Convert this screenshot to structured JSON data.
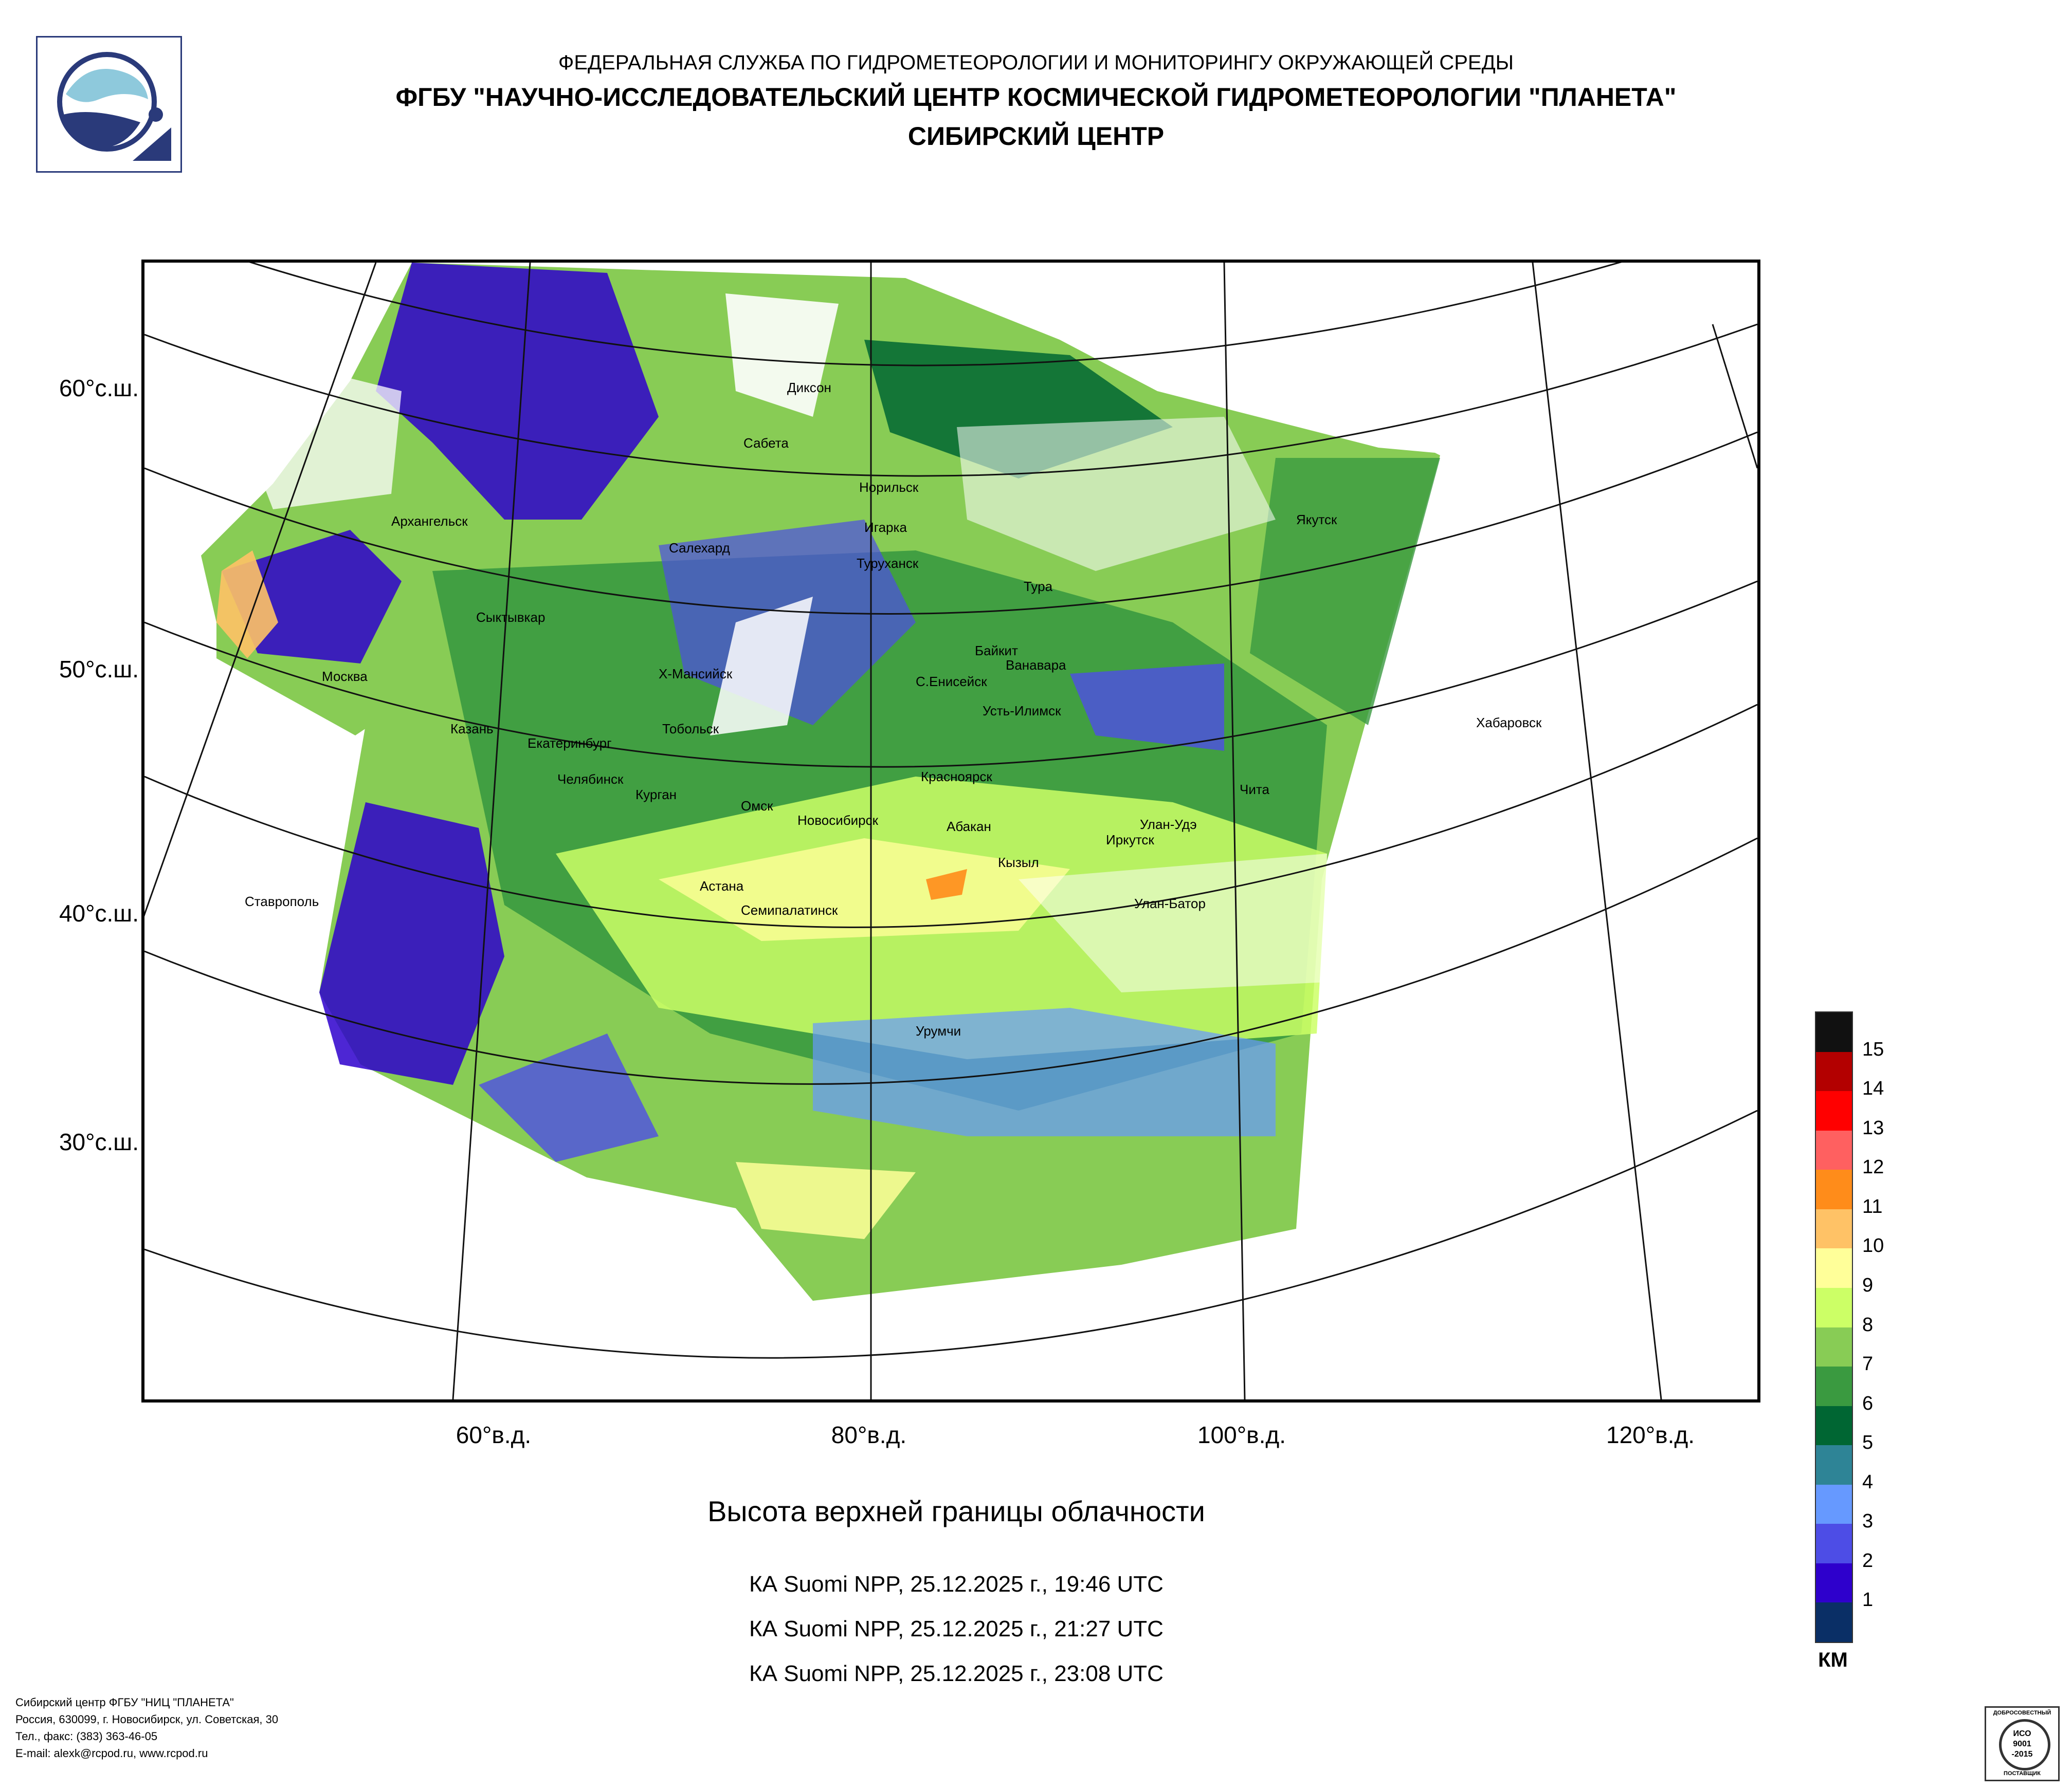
{
  "header": {
    "line1": "ФЕДЕРАЛЬНАЯ СЛУЖБА ПО ГИДРОМЕТЕОРОЛОГИИ И МОНИТОРИНГУ ОКРУЖАЮЩЕЙ СРЕДЫ",
    "line2": "ФГБУ \"НАУЧНО-ИССЛЕДОВАТЕЛЬСКИЙ ЦЕНТР КОСМИЧЕСКОЙ ГИДРОМЕТЕОРОЛОГИИ \"ПЛАНЕТА\"",
    "line3": "СИБИРСКИЙ ЦЕНТР"
  },
  "map": {
    "lat_labels": [
      "60°с.ш.",
      "50°с.ш.",
      "40°с.ш.",
      "30°с.ш."
    ],
    "lon_labels": [
      "60°в.д.",
      "80°в.д.",
      "100°в.д.",
      "120°в.д."
    ],
    "cities": [
      "Диксон",
      "Сабета",
      "Норильск",
      "Игарка",
      "Туруханск",
      "Тура",
      "Якутск",
      "Архангельск",
      "Салехард",
      "Сыктывкар",
      "Байкит",
      "Ванавара",
      "Москва",
      "Х-Мансийск",
      "С.Енисейск",
      "Усть-Илимск",
      "Казань",
      "Тобольск",
      "Екатеринбург",
      "Челябинск",
      "Курган",
      "Омск",
      "Новосибирск",
      "Красноярск",
      "Абакан",
      "Улан-Удэ",
      "Чита",
      "Иркутск",
      "Хабаровск",
      "Кызыл",
      "Астана",
      "Ставрополь",
      "Семипалатинск",
      "Улан-Батор",
      "Урумчи"
    ]
  },
  "title": "Высота верхней границы облачности",
  "passes": [
    "КА Suomi NPP, 25.12.2025 г., 19:46 UTC",
    "КА Suomi NPP, 25.12.2025 г., 21:27 UTC",
    "КА Suomi NPP, 25.12.2025 г., 23:08 UTC"
  ],
  "legend": {
    "unit": "КМ",
    "labels": [
      "15",
      "14",
      "13",
      "12",
      "11",
      "10",
      "9",
      "8",
      "7",
      "6",
      "5",
      "4",
      "3",
      "2",
      "1"
    ],
    "colors": [
      "#111111",
      "#b30000",
      "#ff0000",
      "#ff6060",
      "#ff8c1a",
      "#ffc266",
      "#ffff99",
      "#ccff66",
      "#88cc55",
      "#3a9a40",
      "#006633",
      "#2e8496",
      "#6699ff",
      "#4d4de6",
      "#2e00cc",
      "#0a2f66"
    ]
  },
  "footer": {
    "line1": "Сибирский центр ФГБУ \"НИЦ \"ПЛАНЕТА\"",
    "line2": "Россия, 630099, г. Новосибирск, ул. Советская, 30",
    "line3": "Тел., факс: (383) 363-46-05",
    "line4": "E-mail: alexk@rcpod.ru, www.rcpod.ru"
  },
  "certificate": {
    "top": "ДОБРОСОВЕСТНЫЙ",
    "line1": "ИСО",
    "line2": "9001",
    "line3": "-2015",
    "bottom": "ПОСТАВЩИК"
  }
}
